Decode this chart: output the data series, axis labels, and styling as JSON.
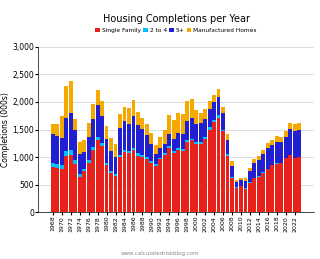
{
  "title": "Housing Completions per Year",
  "ylabel": "Completions (000s)",
  "watermark": "www.calculatedriskblog.com",
  "ylim": [
    0,
    3000
  ],
  "yticks": [
    0,
    500,
    1000,
    1500,
    2000,
    2500,
    3000
  ],
  "colors": {
    "single_family": "#e8221a",
    "two_to_four": "#00bfff",
    "five_plus": "#2020d0",
    "manufactured": "#f5a800"
  },
  "legend_labels": [
    "Single Family",
    "2 to 4",
    "5+",
    "Manufactured Homes"
  ],
  "years": [
    1968,
    1969,
    1970,
    1971,
    1972,
    1973,
    1974,
    1975,
    1976,
    1977,
    1978,
    1979,
    1980,
    1981,
    1982,
    1983,
    1984,
    1985,
    1986,
    1987,
    1988,
    1989,
    1990,
    1991,
    1992,
    1993,
    1994,
    1995,
    1996,
    1997,
    1998,
    1999,
    2000,
    2001,
    2002,
    2003,
    2004,
    2005,
    2006,
    2007,
    2008,
    2009,
    2010,
    2011,
    2012,
    2013,
    2014,
    2015,
    2016,
    2017,
    2018,
    2019,
    2020,
    2021,
    2022,
    2023
  ],
  "single_family": [
    822,
    811,
    794,
    1022,
    1033,
    882,
    643,
    745,
    893,
    1127,
    1302,
    1194,
    852,
    705,
    662,
    1003,
    1085,
    1072,
    1120,
    1022,
    994,
    965,
    895,
    840,
    963,
    1039,
    1160,
    1076,
    1130,
    1116,
    1271,
    1302,
    1231,
    1237,
    1332,
    1499,
    1639,
    1716,
    1465,
    1028,
    622,
    445,
    471,
    430,
    535,
    618,
    648,
    714,
    782,
    849,
    876,
    888,
    979,
    1033,
    979,
    1000
  ],
  "two_to_four": [
    75,
    65,
    60,
    80,
    90,
    75,
    50,
    45,
    55,
    65,
    70,
    60,
    45,
    35,
    30,
    40,
    50,
    45,
    50,
    45,
    40,
    40,
    35,
    30,
    30,
    30,
    35,
    30,
    30,
    30,
    35,
    35,
    35,
    35,
    35,
    40,
    40,
    40,
    35,
    30,
    20,
    10,
    8,
    8,
    8,
    10,
    10,
    10,
    12,
    12,
    12,
    12,
    12,
    12,
    10,
    10
  ],
  "five_plus": [
    520,
    510,
    490,
    610,
    680,
    530,
    360,
    310,
    420,
    490,
    570,
    490,
    440,
    370,
    310,
    480,
    520,
    490,
    580,
    510,
    470,
    400,
    310,
    180,
    170,
    170,
    230,
    230,
    280,
    280,
    340,
    370,
    340,
    340,
    330,
    340,
    320,
    340,
    290,
    260,
    200,
    90,
    100,
    130,
    200,
    270,
    290,
    340,
    370,
    360,
    390,
    370,
    380,
    470,
    490,
    490
  ],
  "manufactured": [
    182,
    217,
    401,
    575,
    576,
    212,
    213,
    212,
    246,
    272,
    277,
    277,
    234,
    240,
    234,
    260,
    260,
    284,
    286,
    240,
    208,
    198,
    188,
    170,
    210,
    254,
    340,
    340,
    363,
    353,
    373,
    347,
    251,
    193,
    169,
    131,
    131,
    146,
    117,
    95,
    82,
    50,
    50,
    51,
    55,
    60,
    67,
    70,
    83,
    96,
    105,
    95,
    94,
    105,
    112,
    110
  ]
}
